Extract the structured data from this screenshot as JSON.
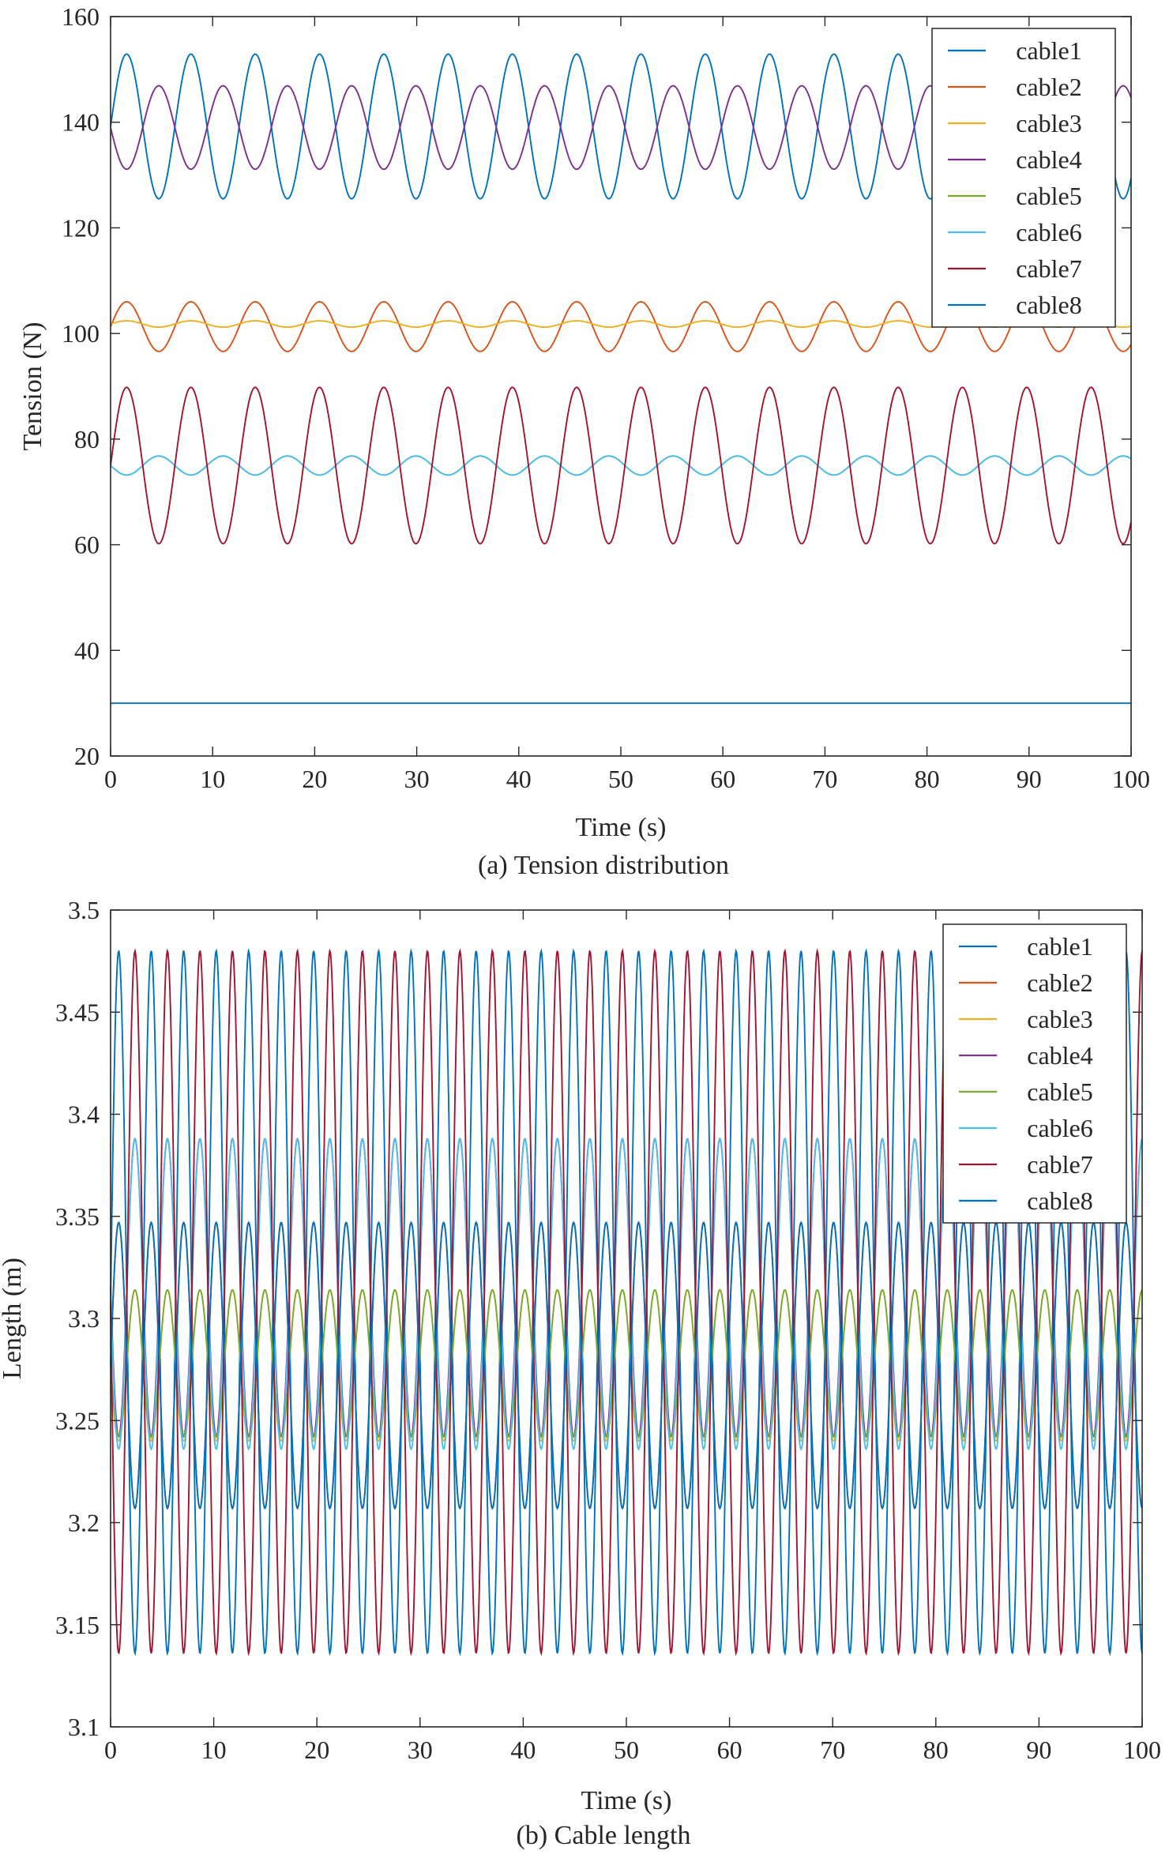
{
  "colors": {
    "cable1": "#0072BD",
    "cable2": "#D95319",
    "cable3": "#EDB120",
    "cable4": "#7E2F8E",
    "cable5": "#77AC30",
    "cable6": "#4DBEEE",
    "cable7": "#A2142F",
    "cable8": "#0072BD",
    "axis": "#262626"
  },
  "chart_data": [
    {
      "type": "line",
      "caption": "(a) Tension distribution",
      "xlabel": "Time (s)",
      "ylabel": "Tension (N)",
      "xlim": [
        0,
        100
      ],
      "ylim": [
        20,
        160
      ],
      "xticks": [
        0,
        10,
        20,
        30,
        40,
        50,
        60,
        70,
        80,
        90,
        100
      ],
      "yticks": [
        20,
        40,
        60,
        80,
        100,
        120,
        140,
        160
      ],
      "legend_position": "top-right",
      "period_s": 6.3,
      "series": [
        {
          "name": "cable1",
          "mean": 139.2,
          "amplitude": 13.7,
          "phase": 0.0
        },
        {
          "name": "cable2",
          "mean": 101.3,
          "amplitude": 4.7,
          "phase": 0.0
        },
        {
          "name": "cable3",
          "mean": 101.8,
          "amplitude": 0.6,
          "phase": 0.0
        },
        {
          "name": "cable4",
          "mean": 139.0,
          "amplitude": 7.9,
          "phase": 3.14159
        },
        {
          "name": "cable5",
          "mean": 75.0,
          "amplitude": 1.8,
          "phase": 3.14159
        },
        {
          "name": "cable6",
          "mean": 75.0,
          "amplitude": 1.8,
          "phase": 3.14159
        },
        {
          "name": "cable7",
          "mean": 75.0,
          "amplitude": 14.8,
          "phase": 0.0
        },
        {
          "name": "cable8",
          "mean": 30.0,
          "amplitude": 0.0,
          "phase": 0.0
        }
      ]
    },
    {
      "type": "line",
      "caption": "(b) Cable length",
      "xlabel": "Time (s)",
      "ylabel": "Length (m)",
      "xlim": [
        0,
        100
      ],
      "ylim": [
        3.1,
        3.5
      ],
      "xticks": [
        0,
        10,
        20,
        30,
        40,
        50,
        60,
        70,
        80,
        90,
        100
      ],
      "yticks": [
        3.1,
        3.15,
        3.2,
        3.25,
        3.3,
        3.35,
        3.4,
        3.45,
        3.5
      ],
      "ytick_labels": [
        "3.1",
        "3.15",
        "3.2",
        "3.25",
        "3.3",
        "3.35",
        "3.4",
        "3.45",
        "3.5"
      ],
      "legend_position": "top-right",
      "period_s": 3.15,
      "series": [
        {
          "name": "cable1",
          "mean": 3.308,
          "amplitude": 0.172,
          "phase": 0.0
        },
        {
          "name": "cable2",
          "mean": 3.277,
          "amplitude": 0.07,
          "phase": 0.0
        },
        {
          "name": "cable3",
          "mean": 3.277,
          "amplitude": 0.037,
          "phase": 3.14159
        },
        {
          "name": "cable4",
          "mean": 3.315,
          "amplitude": 0.073,
          "phase": 3.14159
        },
        {
          "name": "cable5",
          "mean": 3.278,
          "amplitude": 0.036,
          "phase": 3.14159
        },
        {
          "name": "cable6",
          "mean": 3.312,
          "amplitude": 0.076,
          "phase": 3.14159
        },
        {
          "name": "cable7",
          "mean": 3.308,
          "amplitude": 0.172,
          "phase": 3.14159
        },
        {
          "name": "cable8",
          "mean": 3.277,
          "amplitude": 0.07,
          "phase": 0.0
        }
      ]
    }
  ]
}
